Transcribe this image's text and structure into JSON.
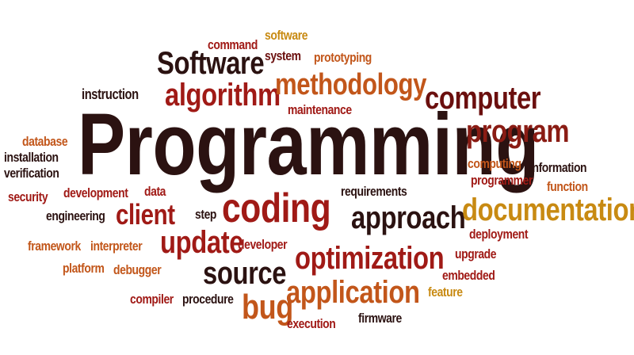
{
  "colors": {
    "near_black": "#2b1211",
    "dark_maroon": "#6b0f0e",
    "red": "#a01a16",
    "orange": "#c2561a",
    "gold": "#c88a12",
    "brick": "#8a1c14"
  },
  "words": {
    "command": "command",
    "software_small": "software",
    "software_big": "Software",
    "system": "system",
    "prototyping": "prototyping",
    "instruction": "instruction",
    "algorithm": "algorithm",
    "methodology": "methodology",
    "maintenance": "maintenance",
    "computer": "computer",
    "programming": "Programming",
    "program": "program",
    "database": "database",
    "installation": "installation",
    "verification": "verification",
    "computing": "computing",
    "information": "information",
    "programmer": "programmer",
    "function": "function",
    "security": "security",
    "development": "development",
    "data": "data",
    "requirements": "requirements",
    "engineering": "engineering",
    "client": "client",
    "step": "step",
    "coding": "coding",
    "approach": "approach",
    "documentation": "documentation",
    "deployment": "deployment",
    "framework": "framework",
    "interpreter": "interpreter",
    "update": "update",
    "developer": "developer",
    "optimization": "optimization",
    "upgrade": "upgrade",
    "platform": "platform",
    "debugger": "debugger",
    "source": "source",
    "embedded": "embedded",
    "feature": "feature",
    "compiler": "compiler",
    "procedure": "procedure",
    "bug": "bug",
    "application": "application",
    "execution": "execution",
    "firmware": "firmware"
  }
}
